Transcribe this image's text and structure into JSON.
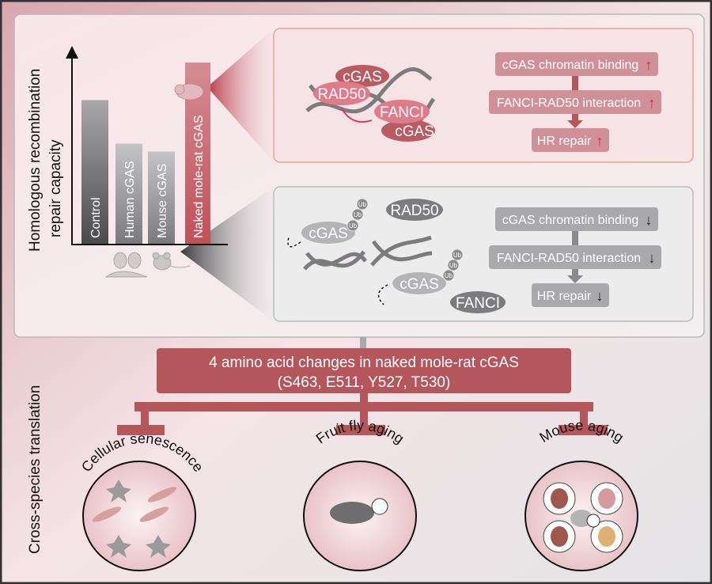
{
  "colors": {
    "accent_red": "#b5555c",
    "box_red": "#d09097",
    "box_gray": "#a9a9ab",
    "up_arrow": "#e0202a"
  },
  "chart": {
    "ylabel_line1": "Homologous recombination",
    "ylabel_line2": "repair capacity",
    "bars": [
      {
        "label": "Control",
        "level": 0.73
      },
      {
        "label": "Human cGAS",
        "level": 0.51
      },
      {
        "label": "Mouse cGAS",
        "level": 0.47
      },
      {
        "label": "Naked mole-rat cGAS",
        "level": 0.92
      }
    ]
  },
  "red_panel": {
    "proteins": [
      "cGAS",
      "RAD50",
      "FANCI",
      "cGAS"
    ],
    "flow": [
      "cGAS chromatin binding",
      "FANCI-RAD50 interaction",
      "HR repair"
    ],
    "arrow": "↑"
  },
  "gray_panel": {
    "proteins": [
      "cGAS",
      "RAD50",
      "cGAS",
      "FANCI"
    ],
    "ub": "Ub",
    "flow": [
      "cGAS chromatin binding",
      "FANCI-RAD50 interaction",
      "HR repair"
    ],
    "arrow": "↓"
  },
  "side_label": "Cross-species translation",
  "changes": {
    "line1": "4 amino acid changes in naked mole-rat cGAS",
    "line2": "(S463, E511, Y527, T530)"
  },
  "outcomes": [
    "Cellular senescence",
    "Fruit fly aging",
    "Mouse aging"
  ]
}
